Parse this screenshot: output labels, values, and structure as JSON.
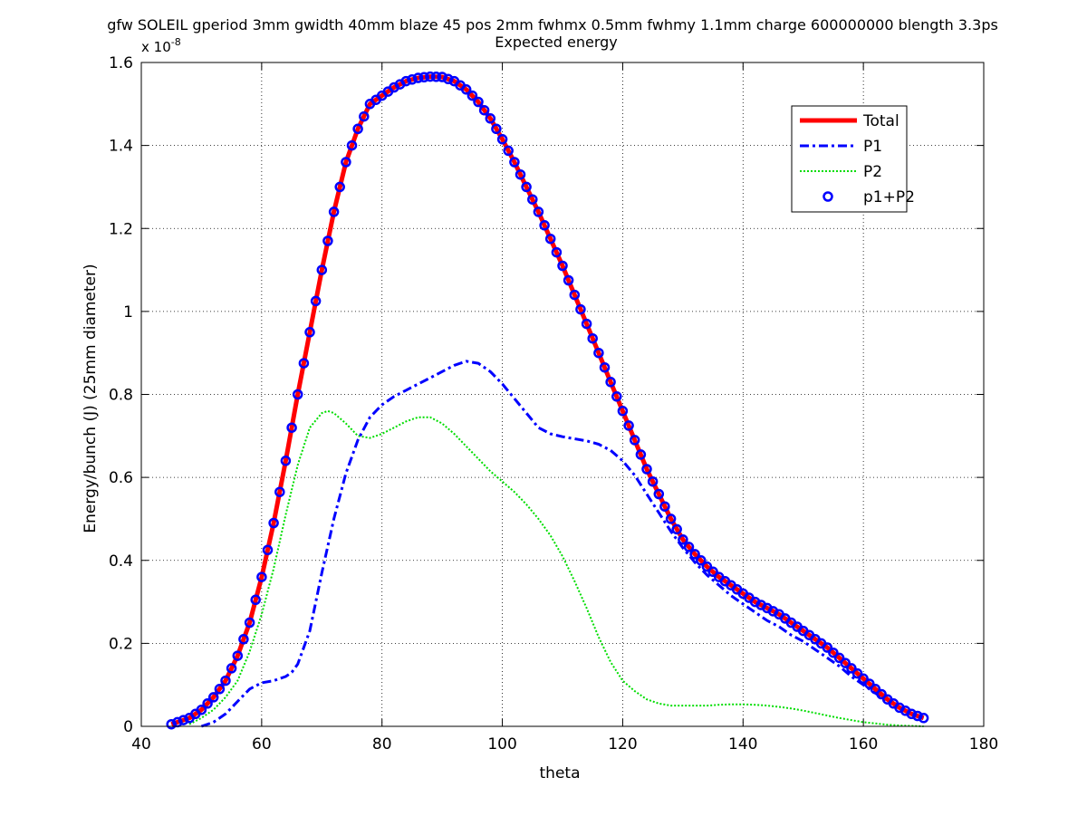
{
  "chart_data": {
    "type": "line",
    "title_line1": "gfw SOLEIL gperiod 3mm gwidth 40mm blaze 45 pos 2mm fwhmx 0.5mm fwhmy 1.1mm charge 600000000 blength 3.3ps",
    "title_line2": "Expected energy",
    "xlabel": "theta",
    "ylabel": "Energy/bunch (J) (25mm diameter)",
    "y_multiplier": "x 10",
    "y_multiplier_exp": "-8",
    "xlim": [
      40,
      180
    ],
    "ylim": [
      0,
      1.6
    ],
    "x_ticks": [
      40,
      60,
      80,
      100,
      120,
      140,
      160,
      180
    ],
    "x_tick_labels": [
      "40",
      "60",
      "80",
      "100",
      "120",
      "140",
      "160",
      "180"
    ],
    "y_ticks": [
      0,
      0.2,
      0.4,
      0.6,
      0.8,
      1.0,
      1.2,
      1.4,
      1.6
    ],
    "y_tick_labels": [
      "0",
      "0.2",
      "0.4",
      "0.6",
      "0.8",
      "1",
      "1.2",
      "1.4",
      "1.6"
    ],
    "grid": true,
    "legend_position": "top-right",
    "series": [
      {
        "name": "Total",
        "color": "#ff0000",
        "style": "solid",
        "x": [
          45,
          48,
          50,
          52,
          54,
          56,
          58,
          60,
          62,
          64,
          66,
          68,
          70,
          72,
          74,
          76,
          78,
          80,
          82,
          84,
          86,
          88,
          90,
          92,
          94,
          96,
          98,
          100,
          102,
          104,
          106,
          108,
          110,
          112,
          114,
          116,
          118,
          120,
          122,
          124,
          126,
          128,
          130,
          132,
          134,
          136,
          138,
          140,
          142,
          144,
          146,
          148,
          150,
          152,
          154,
          156,
          158,
          160,
          162,
          164,
          166,
          168,
          170
        ],
        "y": [
          0.005,
          0.02,
          0.04,
          0.07,
          0.11,
          0.17,
          0.25,
          0.36,
          0.49,
          0.64,
          0.8,
          0.95,
          1.1,
          1.24,
          1.36,
          1.44,
          1.5,
          1.52,
          1.54,
          1.555,
          1.563,
          1.566,
          1.565,
          1.555,
          1.535,
          1.505,
          1.465,
          1.415,
          1.36,
          1.3,
          1.24,
          1.175,
          1.11,
          1.04,
          0.97,
          0.9,
          0.83,
          0.76,
          0.69,
          0.62,
          0.56,
          0.5,
          0.45,
          0.415,
          0.385,
          0.36,
          0.34,
          0.32,
          0.3,
          0.285,
          0.27,
          0.25,
          0.23,
          0.21,
          0.19,
          0.165,
          0.14,
          0.115,
          0.09,
          0.065,
          0.045,
          0.03,
          0.02
        ]
      },
      {
        "name": "P1",
        "color": "#0000ff",
        "style": "dashdot",
        "x": [
          50,
          52,
          54,
          56,
          58,
          60,
          62,
          64,
          65,
          66,
          68,
          70,
          72,
          74,
          76,
          78,
          80,
          82,
          84,
          86,
          88,
          90,
          92,
          94,
          96,
          98,
          100,
          102,
          104,
          106,
          108,
          110,
          112,
          114,
          116,
          118,
          120,
          122,
          124,
          126,
          128,
          130,
          132,
          134,
          136,
          138,
          140,
          142,
          144,
          146,
          148,
          150,
          152,
          154,
          156,
          158,
          160,
          162,
          164,
          166,
          168,
          170
        ],
        "y": [
          0.0,
          0.01,
          0.03,
          0.06,
          0.09,
          0.105,
          0.11,
          0.12,
          0.13,
          0.15,
          0.23,
          0.37,
          0.5,
          0.61,
          0.69,
          0.745,
          0.775,
          0.795,
          0.81,
          0.825,
          0.84,
          0.855,
          0.87,
          0.88,
          0.875,
          0.855,
          0.825,
          0.79,
          0.755,
          0.72,
          0.705,
          0.698,
          0.693,
          0.688,
          0.68,
          0.665,
          0.64,
          0.605,
          0.56,
          0.515,
          0.47,
          0.43,
          0.395,
          0.365,
          0.34,
          0.315,
          0.295,
          0.275,
          0.255,
          0.24,
          0.22,
          0.205,
          0.185,
          0.165,
          0.145,
          0.12,
          0.1,
          0.08,
          0.06,
          0.045,
          0.03,
          0.02
        ]
      },
      {
        "name": "P2",
        "color": "#00dd00",
        "style": "dotted",
        "x": [
          48,
          50,
          52,
          54,
          56,
          58,
          60,
          62,
          64,
          66,
          68,
          70,
          71,
          72,
          74,
          76,
          78,
          80,
          82,
          84,
          86,
          88,
          90,
          92,
          94,
          96,
          98,
          100,
          102,
          104,
          106,
          108,
          110,
          112,
          114,
          116,
          118,
          120,
          122,
          124,
          126,
          128,
          130,
          132,
          134,
          136,
          138,
          140,
          142,
          144,
          146,
          148,
          150,
          152,
          154,
          156,
          158,
          160,
          162,
          164,
          166,
          168,
          170
        ],
        "y": [
          0.005,
          0.02,
          0.04,
          0.07,
          0.11,
          0.18,
          0.27,
          0.38,
          0.51,
          0.63,
          0.72,
          0.755,
          0.76,
          0.755,
          0.73,
          0.7,
          0.695,
          0.705,
          0.72,
          0.735,
          0.745,
          0.745,
          0.73,
          0.705,
          0.675,
          0.645,
          0.615,
          0.59,
          0.565,
          0.535,
          0.5,
          0.46,
          0.41,
          0.35,
          0.285,
          0.215,
          0.155,
          0.11,
          0.085,
          0.065,
          0.055,
          0.05,
          0.05,
          0.05,
          0.05,
          0.052,
          0.053,
          0.053,
          0.052,
          0.05,
          0.047,
          0.043,
          0.038,
          0.032,
          0.026,
          0.02,
          0.015,
          0.01,
          0.007,
          0.004,
          0.002,
          0.001,
          0.0
        ]
      },
      {
        "name": "p1+P2",
        "color": "#0000ff",
        "style": "markers",
        "x_start": 45,
        "x_end": 170,
        "x_step": 1
      }
    ]
  }
}
